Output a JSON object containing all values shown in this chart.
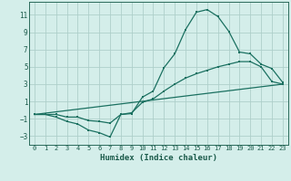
{
  "xlabel": "Humidex (Indice chaleur)",
  "bg_color": "#d4eeea",
  "grid_color": "#aecfca",
  "line_color": "#1a7060",
  "xlim": [
    -0.5,
    23.5
  ],
  "ylim": [
    -4,
    12.5
  ],
  "yticks": [
    -3,
    -1,
    1,
    3,
    5,
    7,
    9,
    11
  ],
  "xticks": [
    0,
    1,
    2,
    3,
    4,
    5,
    6,
    7,
    8,
    9,
    10,
    11,
    12,
    13,
    14,
    15,
    16,
    17,
    18,
    19,
    20,
    21,
    22,
    23
  ],
  "series1_x": [
    0,
    1,
    2,
    3,
    4,
    5,
    6,
    7,
    8,
    9,
    10,
    11,
    12,
    13,
    14,
    15,
    16,
    17,
    18,
    19,
    20,
    21,
    22,
    23
  ],
  "series1_y": [
    -0.5,
    -0.5,
    -0.8,
    -1.3,
    -1.6,
    -2.3,
    -2.6,
    -3.1,
    -0.5,
    -0.4,
    1.5,
    2.2,
    4.9,
    6.5,
    9.3,
    11.3,
    11.6,
    10.8,
    9.1,
    6.7,
    6.5,
    5.3,
    4.8,
    3.2
  ],
  "series2_x": [
    0,
    1,
    2,
    3,
    4,
    5,
    6,
    7,
    8,
    9,
    10,
    11,
    12,
    13,
    14,
    15,
    16,
    17,
    18,
    19,
    20,
    21,
    22,
    23
  ],
  "series2_y": [
    -0.5,
    -0.5,
    -0.5,
    -0.8,
    -0.8,
    -1.2,
    -1.3,
    -1.5,
    -0.5,
    -0.3,
    0.9,
    1.3,
    2.2,
    3.0,
    3.7,
    4.2,
    4.6,
    5.0,
    5.3,
    5.6,
    5.6,
    5.0,
    3.3,
    3.0
  ],
  "series3_x": [
    0,
    23
  ],
  "series3_y": [
    -0.5,
    3.0
  ],
  "marker_size": 2.0,
  "line_width": 0.9,
  "xlabel_fontsize": 6.5,
  "tick_fontsize": 5.5
}
